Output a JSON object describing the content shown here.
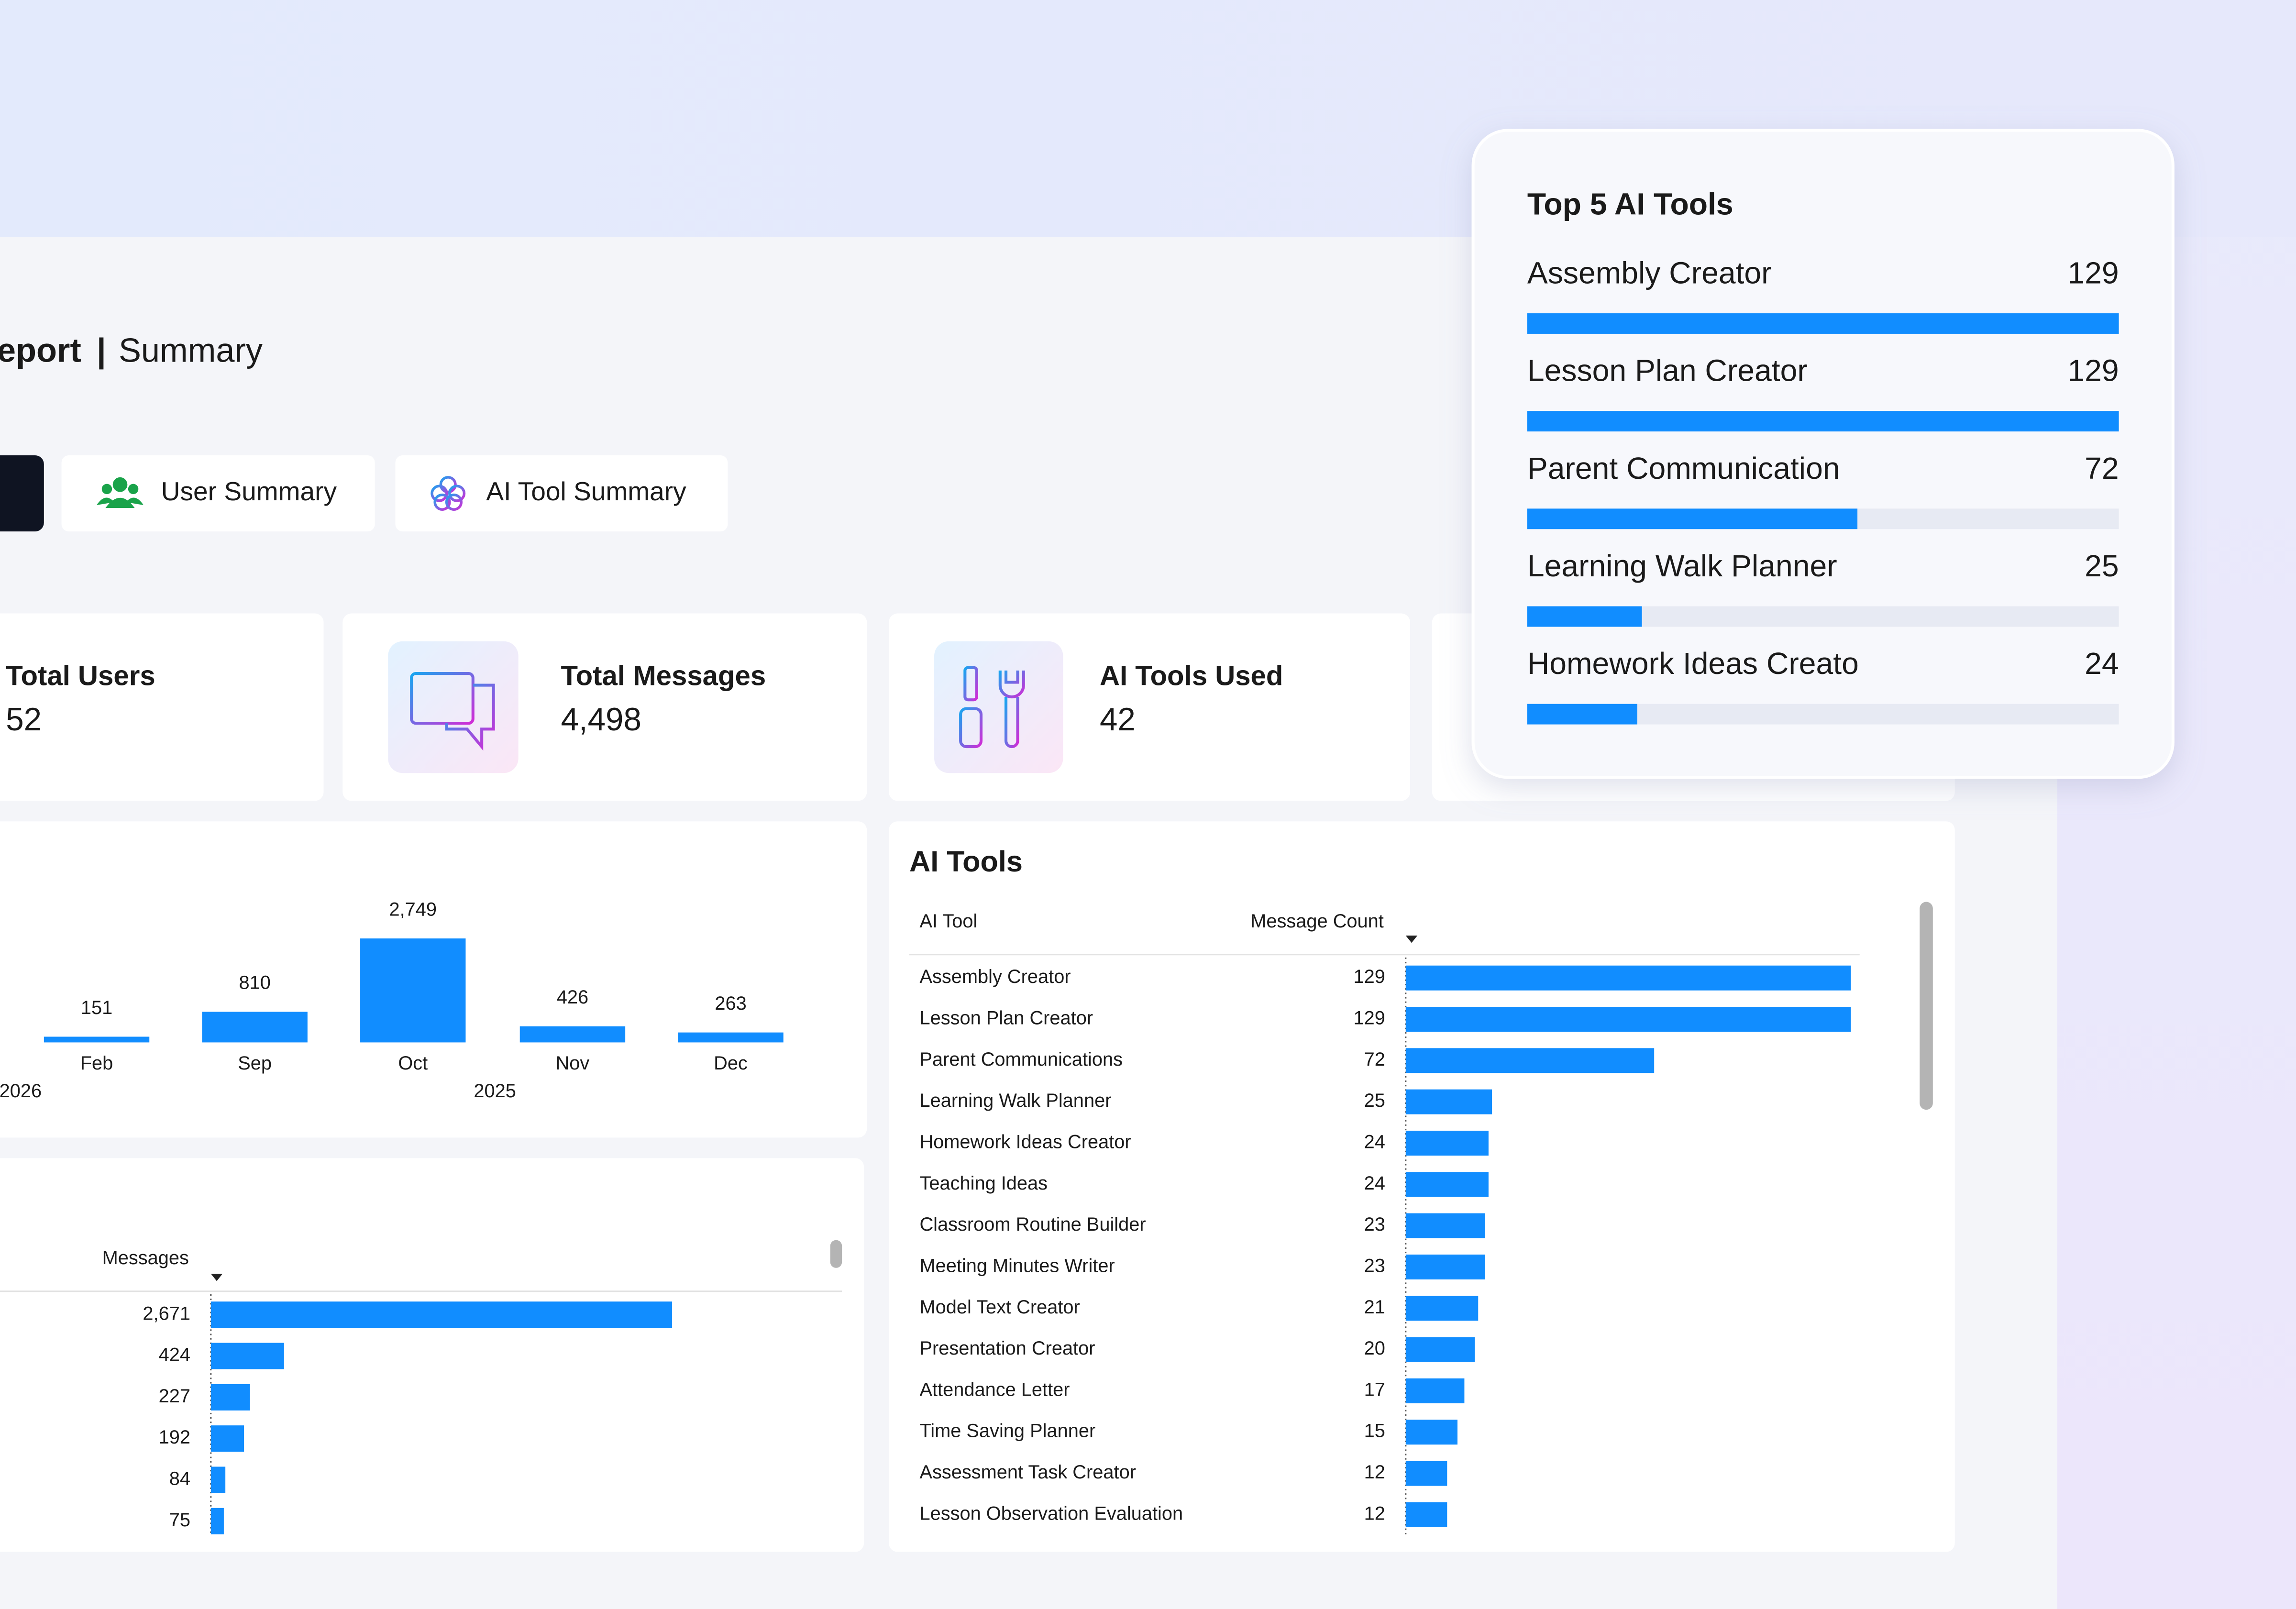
{
  "header": {
    "report": "eport",
    "separator": "|",
    "summary": "Summary"
  },
  "tabs": [
    "User Summary",
    "AI Tool Summary"
  ],
  "kpis": [
    {
      "label": "Total Users",
      "value": "52"
    },
    {
      "label": "Total Messages",
      "value": "4,498"
    },
    {
      "label": "AI Tools Used",
      "value": "42"
    }
  ],
  "monthly_chart": {
    "type": "bar",
    "categories": [
      "Feb",
      "Sep",
      "Oct",
      "Nov",
      "Dec"
    ],
    "values": [
      151,
      810,
      2749,
      426,
      263
    ],
    "value_labels": [
      "151",
      "810",
      "2,749",
      "426",
      "263"
    ],
    "year_labels": [
      "2026",
      "2025"
    ],
    "color": "#118dff"
  },
  "user_messages": {
    "type": "bar",
    "column": "Messages",
    "values": [
      2671,
      424,
      227,
      192,
      84,
      75
    ],
    "value_labels": [
      "2,671",
      "424",
      "227",
      "192",
      "84",
      "75"
    ],
    "color": "#118dff"
  },
  "ai_tools": {
    "type": "bar",
    "title": "AI Tools",
    "columns": [
      "AI Tool",
      "Message Count"
    ],
    "categories": [
      "Assembly Creator",
      "Lesson Plan Creator",
      "Parent Communications",
      "Learning Walk Planner",
      "Homework Ideas Creator",
      "Teaching Ideas",
      "Classroom Routine Builder",
      "Meeting Minutes Writer",
      "Model Text Creator",
      "Presentation Creator",
      "Attendance Letter",
      "Time Saving Planner",
      "Assessment Task Creator",
      "Lesson Observation Evaluation"
    ],
    "values": [
      129,
      129,
      72,
      25,
      24,
      24,
      23,
      23,
      21,
      20,
      17,
      15,
      12,
      12
    ],
    "color": "#118dff"
  },
  "top_tools": {
    "type": "bar",
    "title": "Top 5 AI Tools",
    "categories": [
      "Assembly Creator",
      "Lesson Plan Creator",
      "Parent Communication",
      "Learning Walk Planner",
      "Homework Ideas Creato"
    ],
    "values": [
      129,
      129,
      72,
      25,
      24
    ],
    "color": "#118dff"
  }
}
